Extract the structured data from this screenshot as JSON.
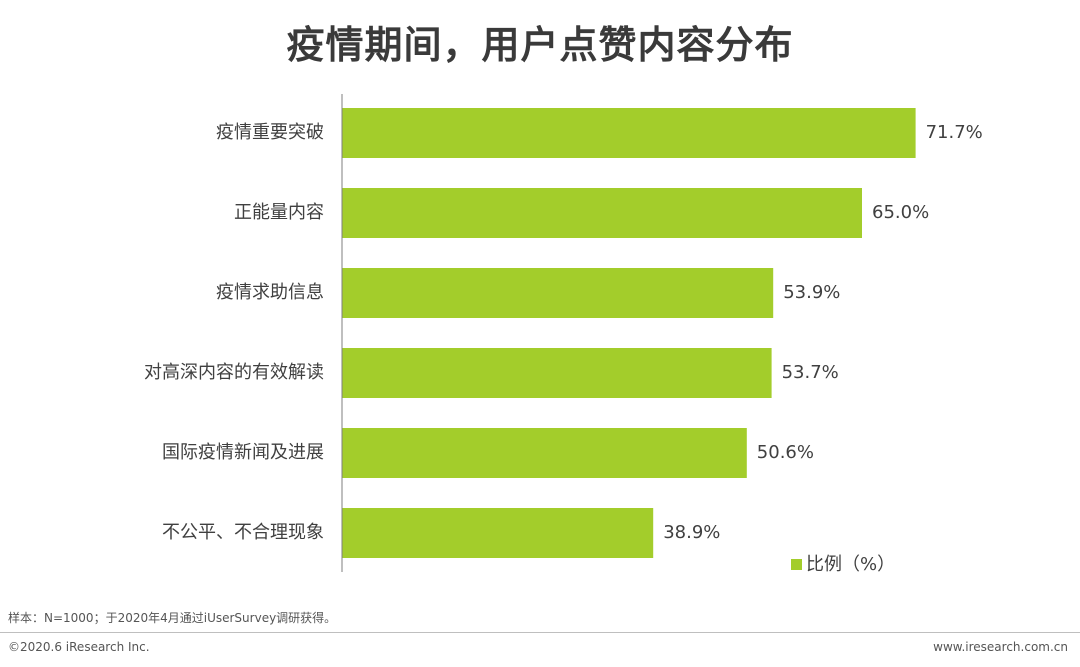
{
  "title": "疫情期间，用户点赞内容分布",
  "footer": {
    "note": "样本：N=1000；于2020年4月通过iUserSurvey调研获得。",
    "copyright": "©2020.6 iResearch Inc.",
    "website": "www.iresearch.com.cn"
  },
  "colors": {
    "bar": "#a3cd2b",
    "axis": "#7f7f7f",
    "text": "#404040"
  },
  "chart_data": {
    "type": "bar",
    "orientation": "horizontal",
    "categories": [
      "疫情重要突破",
      "正能量内容",
      "疫情求助信息",
      "对高深内容的有效解读",
      "国际疫情新闻及进展",
      "不公平、不合理现象"
    ],
    "series": [
      {
        "name": "比例（%）",
        "values": [
          71.7,
          65.0,
          53.9,
          53.7,
          50.6,
          38.9
        ],
        "labels": [
          "71.7%",
          "65.0%",
          "53.9%",
          "53.7%",
          "50.6%",
          "38.9%"
        ]
      }
    ],
    "xlim": [
      0,
      80
    ],
    "grid": false,
    "legend": "bottom-right"
  }
}
